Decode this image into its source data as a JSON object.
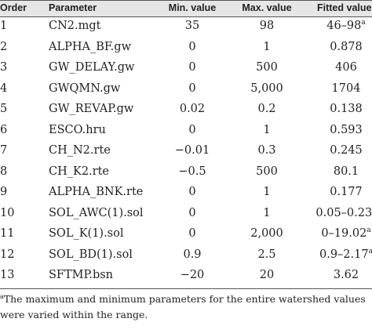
{
  "headers": {
    "order": "Order",
    "parameter": "Parameter",
    "min": "Min. value",
    "max": "Max. value",
    "fitted": "Fitted value"
  },
  "rows": [
    {
      "order": "1",
      "parameter": "CN2.mgt",
      "min": "35",
      "max": "98",
      "fitted": "46–98",
      "sup": "a"
    },
    {
      "order": "2",
      "parameter": "ALPHA_BF.gw",
      "min": "0",
      "max": "1",
      "fitted": "0.878",
      "sup": ""
    },
    {
      "order": "3",
      "parameter": "GW_DELAY.gw",
      "min": "0",
      "max": "500",
      "fitted": "406",
      "sup": ""
    },
    {
      "order": "4",
      "parameter": "GWQMN.gw",
      "min": "0",
      "max": "5,000",
      "fitted": "1704",
      "sup": ""
    },
    {
      "order": "5",
      "parameter": "GW_REVAP.gw",
      "min": "0.02",
      "max": "0.2",
      "fitted": "0.138",
      "sup": ""
    },
    {
      "order": "6",
      "parameter": "ESCO.hru",
      "min": "0",
      "max": "1",
      "fitted": "0.593",
      "sup": ""
    },
    {
      "order": "7",
      "parameter": "CH_N2.rte",
      "min": "−0.01",
      "max": "0.3",
      "fitted": "0.245",
      "sup": ""
    },
    {
      "order": "8",
      "parameter": "CH_K2.rte",
      "min": "−0.5",
      "max": "500",
      "fitted": "80.1",
      "sup": ""
    },
    {
      "order": "9",
      "parameter": "ALPHA_BNK.rte",
      "min": "0",
      "max": "1",
      "fitted": "0.177",
      "sup": ""
    },
    {
      "order": "10",
      "parameter": "SOL_AWC(1).sol",
      "min": "0",
      "max": "1",
      "fitted": "0.05–0.23",
      "sup": "a"
    },
    {
      "order": "11",
      "parameter": "SOL_K(1).sol",
      "min": "0",
      "max": "2,000",
      "fitted": "0–19.02",
      "sup": "a"
    },
    {
      "order": "12",
      "parameter": "SOL_BD(1).sol",
      "min": "0.9",
      "max": "2.5",
      "fitted": "0.9–2.17",
      "sup": "a"
    },
    {
      "order": "13",
      "parameter": "SFTMP.bsn",
      "min": "−20",
      "max": "20",
      "fitted": "3.62",
      "sup": ""
    }
  ],
  "footnote": {
    "marker": "a",
    "text": "The maximum and minimum parameters for the entire watershed values were varied within the range."
  }
}
